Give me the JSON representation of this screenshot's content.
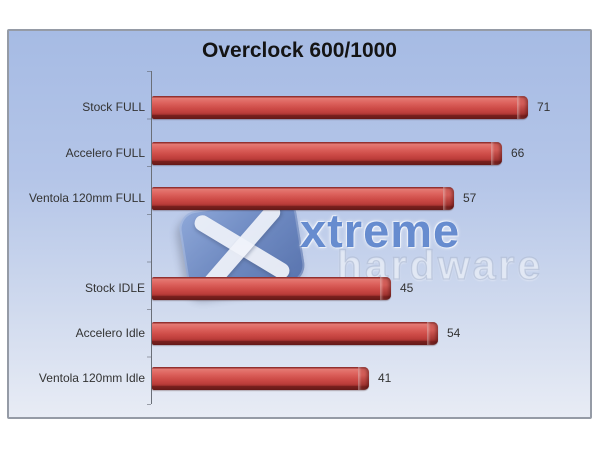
{
  "chart_data": {
    "type": "bar",
    "orientation": "horizontal",
    "title": "Overclock 600/1000",
    "categories": [
      "Stock FULL",
      "Accelero FULL",
      "Ventola 120mm FULL",
      "Stock IDLE",
      "Accelero Idle",
      "Ventola 120mm Idle"
    ],
    "values": [
      71,
      66,
      57,
      45,
      54,
      41
    ],
    "rows": [
      {
        "label": "Stock FULL",
        "value": 71
      },
      {
        "label": "Accelero FULL",
        "value": 66
      },
      {
        "label": "Ventola 120mm FULL",
        "value": 57
      },
      {
        "label": "Stock IDLE",
        "value": 45
      },
      {
        "label": "Accelero Idle",
        "value": 54
      },
      {
        "label": "Ventola 120mm Idle",
        "value": 41
      }
    ],
    "data_labels_shown": true,
    "value_axis": {
      "visible": false,
      "min": 0,
      "max_estimated": 83
    },
    "gridlines": false,
    "legend": "none",
    "group_gap_after_index": 2,
    "colors": {
      "bar_fill": "#c9453f",
      "bar_dark_edge": "#6f1d1c",
      "chart_bg_top": "#a6bbe4",
      "chart_bg_bottom": "#e8ecf5",
      "frame_border": "#959ba6",
      "axis_line": "#6a6f78",
      "label_text": "#333333",
      "title_text": "#141414"
    }
  },
  "watermark": {
    "text_primary": "xtreme",
    "text_secondary": "hardware",
    "tile_glyph": "x-cross",
    "accent_blue": "#4673c4"
  }
}
